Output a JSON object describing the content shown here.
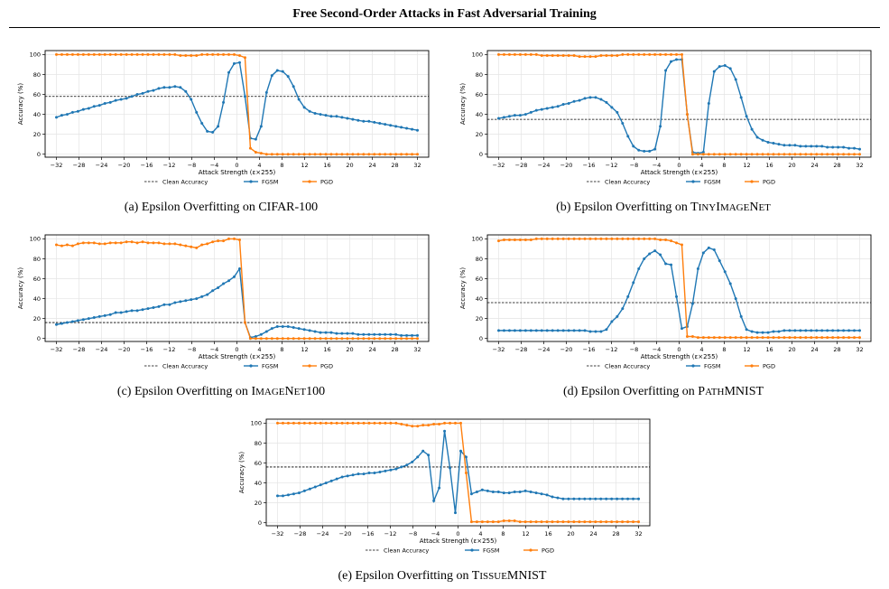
{
  "page": {
    "title": "Free Second-Order Attacks in Fast Adversarial Training"
  },
  "chart_data": [
    {
      "type": "line",
      "id": "a",
      "caption": "(a) Epsilon Overfitting on CIFAR-100",
      "xlabel": "Attack Strength (ε×255)",
      "ylabel": "Accuracy (%)",
      "xlim": [
        -34,
        34
      ],
      "ylim": [
        -3,
        104
      ],
      "xticks": [
        -32,
        -28,
        -24,
        -20,
        -16,
        -12,
        -8,
        -4,
        0,
        4,
        8,
        12,
        16,
        20,
        24,
        28,
        32
      ],
      "yticks": [
        0,
        20,
        40,
        60,
        80,
        100
      ],
      "grid": true,
      "legend_position": "bottom-center",
      "clean_accuracy": 58,
      "clean_label": "Clean Accuracy",
      "colors": {
        "fgsm": "#1f77b4",
        "pgd": "#ff7f0e",
        "clean": "#000000"
      },
      "series": [
        {
          "name": "FGSM",
          "key": "fgsm",
          "values": [
            37,
            39,
            40,
            42,
            43,
            45,
            46,
            48,
            49,
            51,
            52,
            54,
            55,
            56,
            58,
            60,
            61,
            63,
            64,
            66,
            67,
            67,
            68,
            67,
            63,
            55,
            42,
            31,
            23,
            22,
            28,
            52,
            82,
            91,
            92,
            58,
            16,
            15,
            28,
            62,
            79,
            84,
            83,
            78,
            68,
            55,
            47,
            43,
            41,
            40,
            39,
            38,
            38,
            37,
            36,
            35,
            34,
            33,
            33,
            32,
            31,
            30,
            29,
            28,
            27,
            26,
            25,
            24
          ]
        },
        {
          "name": "PGD",
          "key": "pgd",
          "values": [
            100,
            100,
            100,
            100,
            100,
            100,
            100,
            100,
            100,
            100,
            100,
            100,
            100,
            100,
            100,
            100,
            100,
            100,
            100,
            100,
            100,
            100,
            100,
            99,
            99,
            99,
            99,
            100,
            100,
            100,
            100,
            100,
            100,
            100,
            99,
            97,
            6,
            2,
            1,
            0,
            0,
            0,
            0,
            0,
            0,
            0,
            0,
            0,
            0,
            0,
            0,
            0,
            0,
            0,
            0,
            0,
            0,
            0,
            0,
            0,
            0,
            0,
            0,
            0,
            0,
            0,
            0,
            0
          ]
        }
      ]
    },
    {
      "type": "line",
      "id": "b",
      "caption_prefix": "(b) Epsilon Overfitting on ",
      "caption_big1": "T",
      "caption_small1": "INY",
      "caption_big2": "I",
      "caption_small2": "MAGE",
      "caption_big3": "N",
      "caption_small3": "ET",
      "xlabel": "Attack Strength (ε×255)",
      "ylabel": "Accuracy (%)",
      "xlim": [
        -34,
        34
      ],
      "ylim": [
        -3,
        104
      ],
      "xticks": [
        -32,
        -28,
        -24,
        -20,
        -16,
        -12,
        -8,
        -4,
        0,
        4,
        8,
        12,
        16,
        20,
        24,
        28,
        32
      ],
      "yticks": [
        0,
        20,
        40,
        60,
        80,
        100
      ],
      "grid": true,
      "legend_position": "bottom-center",
      "clean_accuracy": 35,
      "clean_label": "Clean Accuracy",
      "colors": {
        "fgsm": "#1f77b4",
        "pgd": "#ff7f0e",
        "clean": "#000000"
      },
      "series": [
        {
          "name": "FGSM",
          "key": "fgsm",
          "values": [
            36,
            37,
            38,
            39,
            39,
            40,
            42,
            44,
            45,
            46,
            47,
            48,
            50,
            51,
            53,
            54,
            56,
            57,
            57,
            55,
            52,
            47,
            42,
            31,
            18,
            8,
            4,
            3,
            3,
            5,
            28,
            84,
            93,
            95,
            95,
            40,
            2,
            1,
            2,
            51,
            83,
            88,
            89,
            86,
            75,
            57,
            38,
            25,
            17,
            14,
            12,
            11,
            10,
            9,
            9,
            9,
            8,
            8,
            8,
            8,
            8,
            7,
            7,
            7,
            7,
            6,
            6,
            5
          ]
        },
        {
          "name": "PGD",
          "key": "pgd",
          "values": [
            100,
            100,
            100,
            100,
            100,
            100,
            100,
            100,
            99,
            99,
            99,
            99,
            99,
            99,
            99,
            98,
            98,
            98,
            98,
            99,
            99,
            99,
            99,
            100,
            100,
            100,
            100,
            100,
            100,
            100,
            100,
            100,
            100,
            100,
            100,
            40,
            0,
            0,
            0,
            0,
            0,
            0,
            0,
            0,
            0,
            0,
            0,
            0,
            0,
            0,
            0,
            0,
            0,
            0,
            0,
            0,
            0,
            0,
            0,
            0,
            0,
            0,
            0,
            0,
            0,
            0,
            0,
            0
          ]
        }
      ]
    },
    {
      "type": "line",
      "id": "c",
      "caption_prefix": "(c) Epsilon Overfitting on ",
      "caption_big1": "I",
      "caption_small1": "MAGE",
      "caption_big2": "N",
      "caption_small2": "ET",
      "caption_suffix": "100",
      "xlabel": "Attack Strength (ε×255)",
      "ylabel": "Accuracy (%)",
      "xlim": [
        -34,
        34
      ],
      "ylim": [
        -3,
        104
      ],
      "xticks": [
        -32,
        -28,
        -24,
        -20,
        -16,
        -12,
        -8,
        -4,
        0,
        4,
        8,
        12,
        16,
        20,
        24,
        28,
        32
      ],
      "yticks": [
        0,
        20,
        40,
        60,
        80,
        100
      ],
      "grid": true,
      "legend_position": "bottom-center",
      "clean_accuracy": 16,
      "clean_label": "Clean Accuracy",
      "colors": {
        "fgsm": "#1f77b4",
        "pgd": "#ff7f0e",
        "clean": "#000000"
      },
      "series": [
        {
          "name": "FGSM",
          "key": "fgsm",
          "values": [
            14,
            15,
            16,
            17,
            18,
            19,
            20,
            21,
            22,
            23,
            24,
            26,
            26,
            27,
            28,
            28,
            29,
            30,
            31,
            32,
            34,
            34,
            36,
            37,
            38,
            39,
            40,
            42,
            44,
            48,
            51,
            55,
            58,
            62,
            70,
            16,
            1,
            2,
            4,
            7,
            10,
            12,
            12,
            12,
            11,
            10,
            9,
            8,
            7,
            6,
            6,
            6,
            5,
            5,
            5,
            5,
            4,
            4,
            4,
            4,
            4,
            4,
            4,
            4,
            3,
            3,
            3,
            3
          ]
        },
        {
          "name": "PGD",
          "key": "pgd",
          "values": [
            94,
            93,
            94,
            93,
            95,
            96,
            96,
            96,
            95,
            95,
            96,
            96,
            96,
            97,
            97,
            96,
            97,
            96,
            96,
            96,
            95,
            95,
            95,
            94,
            93,
            92,
            91,
            94,
            95,
            97,
            98,
            98,
            100,
            100,
            99,
            16,
            0,
            0,
            0,
            0,
            0,
            0,
            0,
            0,
            0,
            0,
            0,
            0,
            0,
            0,
            0,
            0,
            0,
            0,
            0,
            0,
            0,
            0,
            0,
            0,
            0,
            0,
            0,
            0,
            0,
            0,
            0,
            0
          ]
        }
      ]
    },
    {
      "type": "line",
      "id": "d",
      "caption_prefix": "(d) Epsilon Overfitting on ",
      "caption_big1": "P",
      "caption_small1": "ATH",
      "caption_suffix": "MNIST",
      "xlabel": "Attack Strength (ε×255)",
      "ylabel": "Accuracy (%)",
      "xlim": [
        -34,
        34
      ],
      "ylim": [
        -3,
        104
      ],
      "xticks": [
        -32,
        -28,
        -24,
        -20,
        -16,
        -12,
        -8,
        -4,
        0,
        4,
        8,
        12,
        16,
        20,
        24,
        28,
        32
      ],
      "yticks": [
        0,
        20,
        40,
        60,
        80,
        100
      ],
      "grid": true,
      "legend_position": "bottom-center",
      "clean_accuracy": 36,
      "clean_label": "Clean Accuracy",
      "colors": {
        "fgsm": "#1f77b4",
        "pgd": "#ff7f0e",
        "clean": "#000000"
      },
      "series": [
        {
          "name": "FGSM",
          "key": "fgsm",
          "values": [
            8,
            8,
            8,
            8,
            8,
            8,
            8,
            8,
            8,
            8,
            8,
            8,
            8,
            8,
            8,
            8,
            8,
            7,
            7,
            7,
            9,
            17,
            22,
            30,
            42,
            56,
            70,
            80,
            85,
            88,
            84,
            75,
            74,
            42,
            10,
            12,
            35,
            70,
            86,
            91,
            89,
            78,
            67,
            55,
            40,
            22,
            9,
            7,
            6,
            6,
            6,
            7,
            7,
            8,
            8,
            8,
            8,
            8,
            8,
            8,
            8,
            8,
            8,
            8,
            8,
            8,
            8,
            8
          ]
        },
        {
          "name": "PGD",
          "key": "pgd",
          "values": [
            98,
            99,
            99,
            99,
            99,
            99,
            99,
            100,
            100,
            100,
            100,
            100,
            100,
            100,
            100,
            100,
            100,
            100,
            100,
            100,
            100,
            100,
            100,
            100,
            100,
            100,
            100,
            100,
            100,
            100,
            99,
            99,
            98,
            96,
            94,
            2,
            2,
            1,
            1,
            1,
            1,
            1,
            1,
            1,
            1,
            1,
            1,
            1,
            1,
            1,
            1,
            1,
            1,
            1,
            1,
            1,
            1,
            1,
            1,
            1,
            1,
            1,
            1,
            1,
            1,
            1,
            1,
            1
          ]
        }
      ]
    },
    {
      "type": "line",
      "id": "e",
      "caption_prefix": "(e) Epsilon Overfitting on ",
      "caption_big1": "T",
      "caption_small1": "ISSUE",
      "caption_suffix": "MNIST",
      "xlabel": "Attack Strength (ε×255)",
      "ylabel": "Accuracy (%)",
      "xlim": [
        -34,
        34
      ],
      "ylim": [
        -3,
        104
      ],
      "xticks": [
        -32,
        -28,
        -24,
        -20,
        -16,
        -12,
        -8,
        -4,
        0,
        4,
        8,
        12,
        16,
        20,
        24,
        28,
        32
      ],
      "yticks": [
        0,
        20,
        40,
        60,
        80,
        100
      ],
      "grid": true,
      "legend_position": "bottom-center",
      "clean_accuracy": 56,
      "clean_label": "Clean Accuracy",
      "colors": {
        "fgsm": "#1f77b4",
        "pgd": "#ff7f0e",
        "clean": "#000000"
      },
      "series": [
        {
          "name": "FGSM",
          "key": "fgsm",
          "values": [
            27,
            27,
            28,
            29,
            30,
            32,
            34,
            36,
            38,
            40,
            42,
            44,
            46,
            47,
            48,
            49,
            49,
            50,
            50,
            51,
            52,
            53,
            54,
            56,
            58,
            61,
            66,
            72,
            68,
            22,
            35,
            92,
            55,
            10,
            72,
            66,
            29,
            31,
            33,
            32,
            31,
            31,
            30,
            30,
            31,
            31,
            32,
            31,
            30,
            29,
            28,
            26,
            25,
            24,
            24,
            24,
            24,
            24,
            24,
            24,
            24,
            24,
            24,
            24,
            24,
            24,
            24,
            24
          ]
        },
        {
          "name": "PGD",
          "key": "pgd",
          "values": [
            100,
            100,
            100,
            100,
            100,
            100,
            100,
            100,
            100,
            100,
            100,
            100,
            100,
            100,
            100,
            100,
            100,
            100,
            100,
            100,
            100,
            100,
            100,
            99,
            98,
            97,
            97,
            98,
            98,
            99,
            99,
            100,
            100,
            100,
            100,
            50,
            1,
            1,
            1,
            1,
            1,
            1,
            2,
            2,
            2,
            1,
            1,
            1,
            1,
            1,
            1,
            1,
            1,
            1,
            1,
            1,
            1,
            1,
            1,
            1,
            1,
            1,
            1,
            1,
            1,
            1,
            1,
            1
          ]
        }
      ]
    }
  ]
}
